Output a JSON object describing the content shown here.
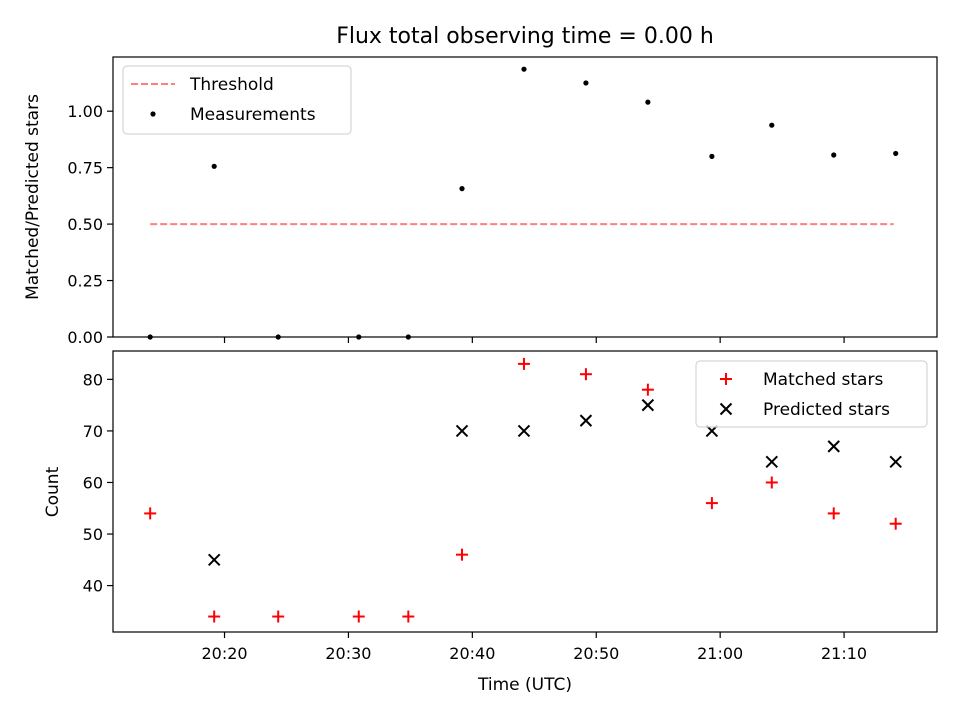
{
  "chart_data": [
    {
      "type": "scatter",
      "title": "Flux total observing time = 0.00 h",
      "xlabel": "",
      "ylabel": "Matched/Predicted stars",
      "ylim": [
        0,
        1.24
      ],
      "yticks": [
        0.0,
        0.25,
        0.5,
        0.75,
        1.0
      ],
      "ytick_labels": [
        "0.00",
        "0.25",
        "0.50",
        "0.75",
        "1.00"
      ],
      "xlim": [
        "20:11:00",
        "21:17:30"
      ],
      "grid": false,
      "legend_position": "top-left",
      "series": [
        {
          "name": "Threshold",
          "style": "dashed-line",
          "color": "#ff7f7f",
          "x": [
            "20:14:00",
            "21:14:00"
          ],
          "y": [
            0.5,
            0.5
          ]
        },
        {
          "name": "Measurements",
          "style": "dot",
          "color": "#000000",
          "x": [
            "20:14:00",
            "20:19:10",
            "20:24:20",
            "20:30:50",
            "20:34:50",
            "20:39:10",
            "20:44:10",
            "20:49:10",
            "20:54:10",
            "20:59:20",
            "21:04:10",
            "21:09:10",
            "21:14:10"
          ],
          "y": [
            0.0,
            0.756,
            0.0,
            0.0,
            0.0,
            0.657,
            1.186,
            1.125,
            1.04,
            0.8,
            0.938,
            0.806,
            0.813
          ]
        }
      ]
    },
    {
      "type": "scatter",
      "title": "",
      "xlabel": "Time (UTC)",
      "ylabel": "Count",
      "ylim": [
        31,
        85.5
      ],
      "yticks": [
        40,
        50,
        60,
        70,
        80
      ],
      "ytick_labels": [
        "40",
        "50",
        "60",
        "70",
        "80"
      ],
      "xlim": [
        "20:11:00",
        "21:17:30"
      ],
      "xticks": [
        "20:20:00",
        "20:30:00",
        "20:40:00",
        "20:50:00",
        "21:00:00",
        "21:10:00"
      ],
      "xtick_labels": [
        "20:20",
        "20:30",
        "20:40",
        "20:50",
        "21:00",
        "21:10"
      ],
      "grid": false,
      "legend_position": "top-right",
      "series": [
        {
          "name": "Matched stars",
          "marker": "plus",
          "color": "#ff0000",
          "x": [
            "20:14:00",
            "20:19:10",
            "20:24:20",
            "20:30:50",
            "20:34:50",
            "20:39:10",
            "20:44:10",
            "20:49:10",
            "20:54:10",
            "20:59:20",
            "21:04:10",
            "21:09:10",
            "21:14:10"
          ],
          "y": [
            54,
            34,
            34,
            34,
            34,
            46,
            83,
            81,
            78,
            56,
            60,
            54,
            52
          ]
        },
        {
          "name": "Predicted stars",
          "marker": "x",
          "color": "#000000",
          "x": [
            "20:19:10",
            "20:39:10",
            "20:44:10",
            "20:49:10",
            "20:54:10",
            "20:59:20",
            "21:04:10",
            "21:09:10",
            "21:14:10"
          ],
          "y": [
            45,
            70,
            70,
            72,
            75,
            70,
            64,
            67,
            64
          ]
        }
      ]
    }
  ]
}
